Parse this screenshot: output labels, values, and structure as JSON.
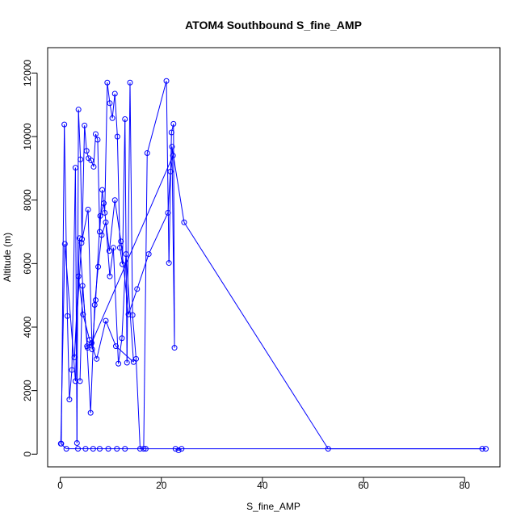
{
  "chart_data": {
    "type": "line",
    "title": "ATOM4 Southbound S_fine_AMP",
    "xlabel": "S_fine_AMP",
    "ylabel": "Altitude (m)",
    "xlim": [
      -2.5,
      87
    ],
    "ylim": [
      -400,
      12800
    ],
    "xticks": [
      0,
      20,
      40,
      60,
      80
    ],
    "xtick_labels": [
      "0",
      "20",
      "40",
      "60",
      "80"
    ],
    "yticks": [
      0,
      2000,
      4000,
      6000,
      8000,
      10000,
      12000
    ],
    "ytick_labels": [
      "0",
      "2000",
      "4000",
      "6000",
      "8000",
      "10000",
      "12000"
    ],
    "grid": false,
    "legend": "none",
    "series_color": "#0000ff",
    "marker": "open-circle",
    "x": [
      0.2,
      0.8,
      1.4,
      1.8,
      2.3,
      3.0,
      3.3,
      3.6,
      4.0,
      4.3,
      4.8,
      5.2,
      5.6,
      6.1,
      6.6,
      7.0,
      7.4,
      7.8,
      8.3,
      8.8,
      9.3,
      9.8,
      10.3,
      10.8,
      11.3,
      11.8,
      12.3,
      12.8,
      13.2,
      13.8,
      14.3,
      15.0,
      15.8,
      16.5,
      17.2,
      21.0,
      21.5,
      22.0,
      22.4,
      22.6,
      22.1,
      24.5,
      53.0,
      83.5,
      84.2,
      22.8,
      23.4,
      24.0,
      16.9,
      12.8,
      11.2,
      9.5,
      7.8,
      6.5,
      5.0,
      3.5,
      1.2,
      0.1,
      0.9,
      3.0,
      3.8,
      5.3,
      6.0,
      6.8,
      7.5,
      8.2,
      9.0,
      9.8,
      10.5,
      11.5,
      12.2,
      13.0,
      14.5,
      11.0,
      9.0,
      7.2,
      5.8,
      4.5,
      3.6,
      2.8,
      4.2,
      5.5,
      6.3,
      7.0,
      7.9,
      8.6,
      9.7,
      10.8,
      12.0,
      13.5,
      15.2,
      17.5,
      21.3,
      21.8,
      22.3,
      6.2,
      5.4,
      4.4,
      3.9
    ],
    "y": [
      330,
      10380,
      4350,
      1720,
      2650,
      9020,
      350,
      10850,
      9280,
      6770,
      10350,
      9550,
      9320,
      9250,
      9050,
      10080,
      9900,
      7000,
      8320,
      7600,
      11700,
      11050,
      10580,
      11350,
      10000,
      6500,
      5980,
      10550,
      2880,
      11700,
      4380,
      3000,
      170,
      170,
      9480,
      11750,
      6020,
      10130,
      10400,
      3350,
      9680,
      7300,
      170,
      170,
      170,
      170,
      120,
      170,
      170,
      170,
      170,
      170,
      170,
      170,
      170,
      170,
      170,
      330,
      6620,
      2300,
      6800,
      3400,
      1300,
      4700,
      5900,
      6900,
      7300,
      5600,
      6500,
      2850,
      3650,
      6300,
      2900,
      3400,
      4200,
      3000,
      3600,
      4400,
      5600,
      3050,
      6650,
      7700,
      3300,
      4850,
      7500,
      7900,
      6400,
      8000,
      6700,
      4400,
      5200,
      6300,
      7600,
      8900,
      9400,
      3500,
      3350,
      5300,
      2300
    ]
  }
}
